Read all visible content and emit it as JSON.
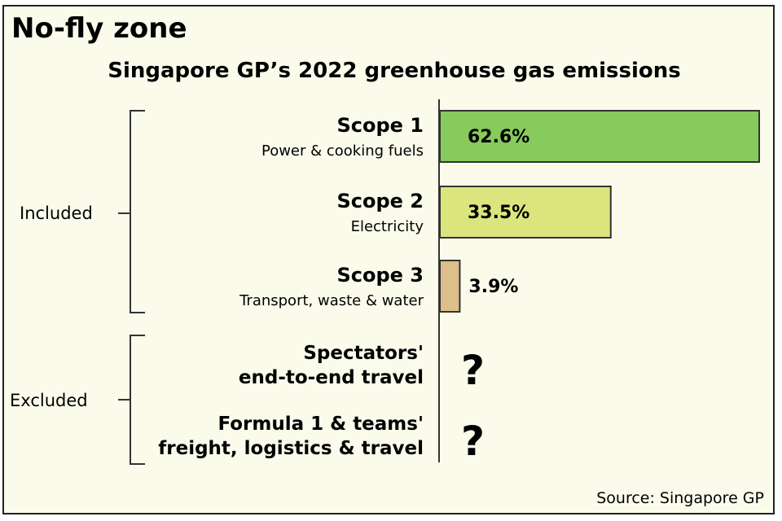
{
  "title": "No-fly zone",
  "source": "Source: Singapore GP",
  "chart_data": {
    "type": "bar",
    "orientation": "horizontal",
    "title": "Singapore GP’s 2022 greenhouse gas emissions",
    "unit": "%",
    "xlim": [
      0,
      62.6
    ],
    "categories": [
      {
        "label": "Scope 1",
        "description": "Power & cooking fuels",
        "value": 62.6,
        "value_label": "62.6%",
        "color": "#86cb5c",
        "group": "Included"
      },
      {
        "label": "Scope 2",
        "description": "Electricity",
        "value": 33.5,
        "value_label": "33.5%",
        "color": "#dbe57e",
        "group": "Included"
      },
      {
        "label": "Scope 3",
        "description": "Transport, waste & water",
        "value": 3.9,
        "value_label": "3.9%",
        "color": "#ddbf8a",
        "group": "Included"
      }
    ],
    "excluded": [
      {
        "line1": "Spectators'",
        "line2": "end-to-end travel",
        "value_label": "?",
        "group": "Excluded"
      },
      {
        "line1": "Formula 1 & teams'",
        "line2": "freight, logistics & travel",
        "value_label": "?",
        "group": "Excluded"
      }
    ],
    "groups": [
      "Included",
      "Excluded"
    ]
  }
}
